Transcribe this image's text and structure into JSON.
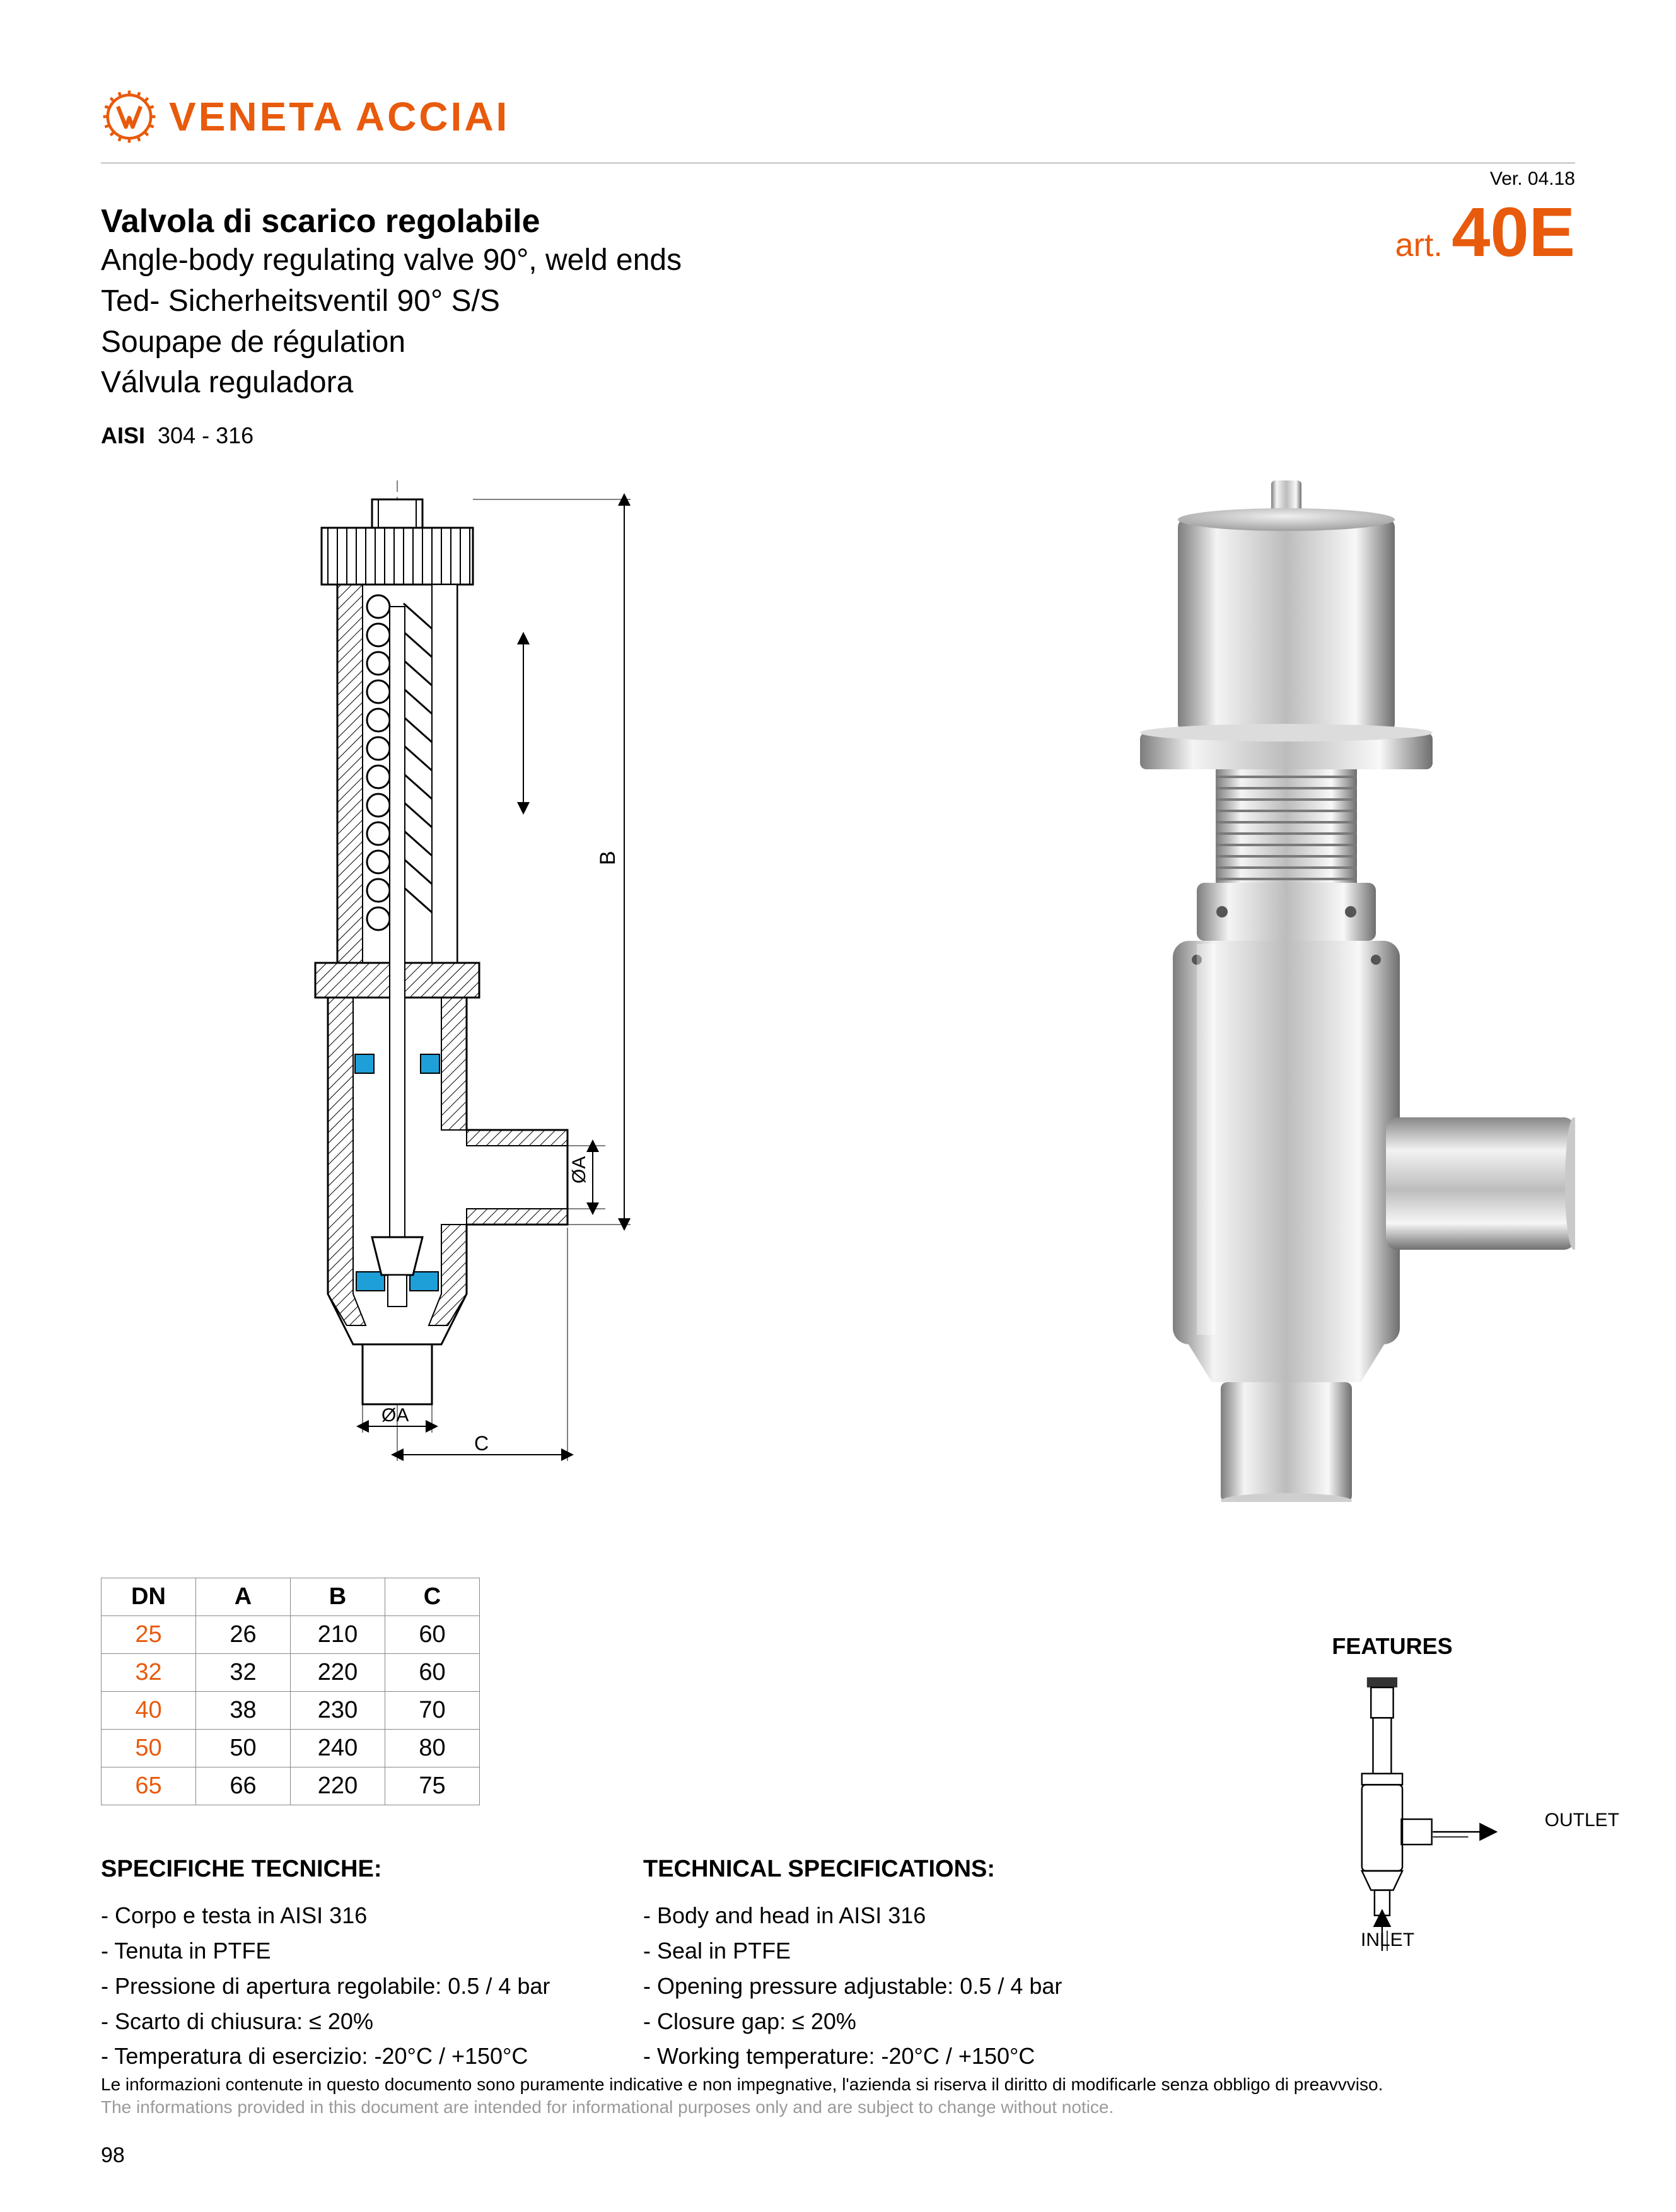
{
  "brand": "VENETA ACCIAI",
  "version": "Ver. 04.18",
  "article_prefix": "art.",
  "article_code": "40E",
  "titles": {
    "bold": "Valvola di scarico regolabile",
    "en": "Angle-body regulating valve 90°, weld ends",
    "de": "Ted- Sicherheitsventil 90° S/S",
    "fr": "Soupape de régulation",
    "es": "Válvula reguladora"
  },
  "aisi_label": "AISI",
  "aisi_value": "304 - 316",
  "drawing": {
    "labels": {
      "B": "B",
      "OA_side": "ØA",
      "OA_bottom": "ØA",
      "C": "C"
    },
    "colors": {
      "stroke": "#000000",
      "hatch": "#000000",
      "seal": "#1f9fd8",
      "dim": "#000000"
    }
  },
  "table": {
    "columns": [
      "DN",
      "A",
      "B",
      "C"
    ],
    "rows": [
      [
        "25",
        "26",
        "210",
        "60"
      ],
      [
        "32",
        "32",
        "220",
        "60"
      ],
      [
        "40",
        "38",
        "230",
        "70"
      ],
      [
        "50",
        "50",
        "240",
        "80"
      ],
      [
        "65",
        "66",
        "220",
        "75"
      ]
    ],
    "dn_color": "#e85a0c",
    "border_color": "#888888"
  },
  "specs_it": {
    "title": "SPECIFICHE TECNICHE:",
    "lines": [
      "- Corpo e testa in AISI 316",
      "- Tenuta in PTFE",
      "- Pressione di apertura regolabile: 0.5 / 4 bar",
      "- Scarto di chiusura: ≤ 20%",
      "- Temperatura di esercizio: -20°C / +150°C"
    ]
  },
  "specs_en": {
    "title": "TECHNICAL SPECIFICATIONS:",
    "lines": [
      "- Body and head in AISI 316",
      "- Seal in PTFE",
      "- Opening pressure adjustable: 0.5 / 4 bar",
      "- Closure gap: ≤ 20%",
      "- Working temperature: -20°C / +150°C"
    ]
  },
  "features": {
    "title": "FEATURES",
    "outlet": "OUTLET",
    "inlet": "INLET"
  },
  "disclaimer_it": "Le informazioni contenute in questo documento sono puramente indicative e non impegnative, l'azienda si riserva il diritto di modificarle senza obbligo di preavvviso.",
  "disclaimer_en": "The informations provided in this document are intended for informational purposes only and are subject to change without notice.",
  "page_number": "98",
  "colors": {
    "brand": "#e85a0c",
    "text": "#000000",
    "muted": "#9a9a9a",
    "steel_light": "#e8e8e8",
    "steel_mid": "#bfbfbf",
    "steel_dark": "#8a8a8a"
  }
}
